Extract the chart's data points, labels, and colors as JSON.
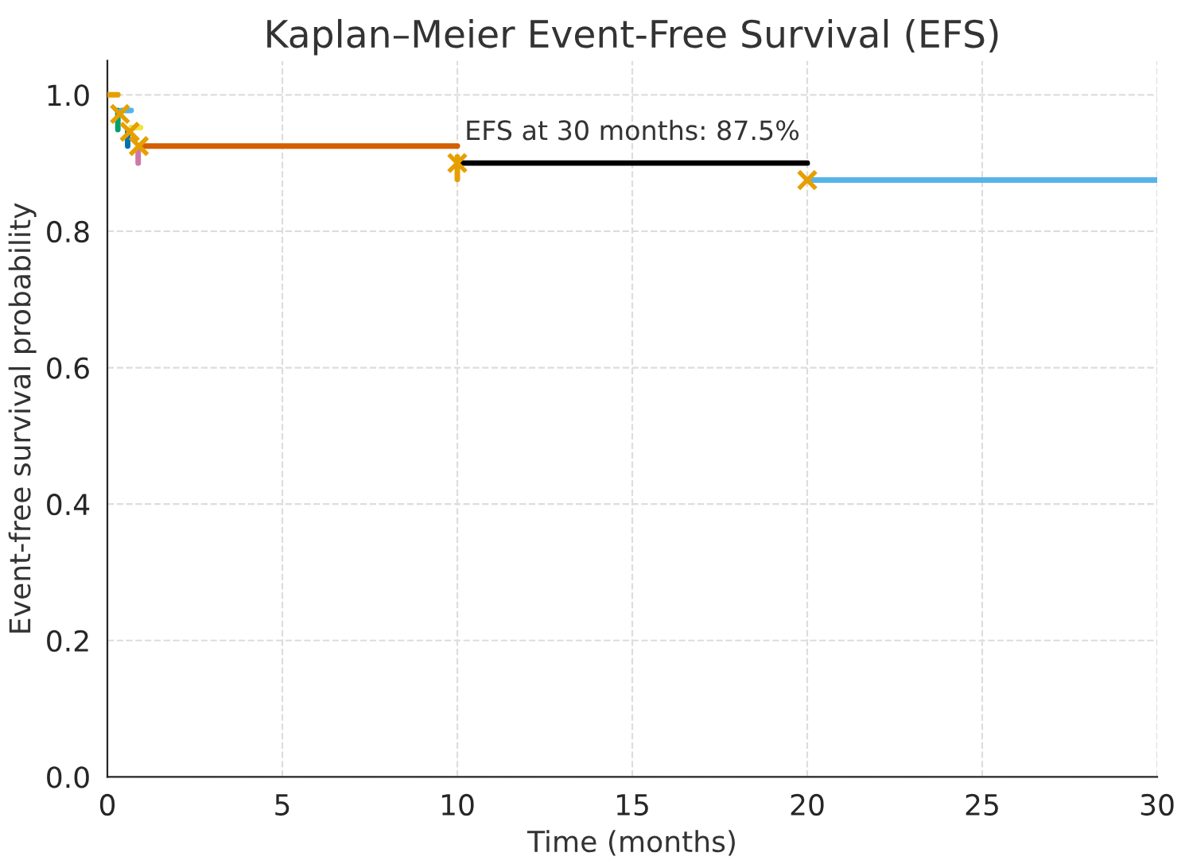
{
  "chart_data": {
    "type": "line",
    "title": "Kaplan–Meier Event-Free Survival (EFS)",
    "xlabel": "Time (months)",
    "ylabel": "Event-free survival probability",
    "xlim": [
      0,
      30
    ],
    "xticks": [
      0,
      5,
      10,
      15,
      20,
      25,
      30
    ],
    "ylim": [
      0,
      1.05
    ],
    "yticks": [
      {
        "value": 0,
        "label": "0.0"
      },
      {
        "value": 0.2,
        "label": "0.2"
      },
      {
        "value": 0.4,
        "label": "0.4"
      },
      {
        "value": 0.6,
        "label": "0.6"
      },
      {
        "value": 0.8,
        "label": "0.8"
      },
      {
        "value": 1.0,
        "label": "1.0"
      }
    ],
    "grid": true,
    "line_style": "solid",
    "series": [
      {
        "color": "#e69f00",
        "x": [
          0,
          0.3
        ],
        "values": [
          1.0,
          1.0
        ]
      },
      {
        "color": "#009e73",
        "x": [
          0.3,
          0.3
        ],
        "values": [
          0.977,
          0.949
        ]
      },
      {
        "color": "#56b4e9",
        "x": [
          0.4,
          0.68
        ],
        "values": [
          0.977,
          0.977
        ]
      },
      {
        "color": "#0072b2",
        "x": [
          0.58,
          0.58
        ],
        "values": [
          0.946,
          0.925
        ]
      },
      {
        "color": "#f0e442",
        "x": [
          0.68,
          0.95
        ],
        "values": [
          0.952,
          0.952
        ]
      },
      {
        "color": "#cc79a7",
        "x": [
          0.88,
          0.88
        ],
        "values": [
          0.918,
          0.9
        ]
      },
      {
        "color": "#d55e00",
        "x": [
          1,
          10
        ],
        "values": [
          0.925,
          0.925
        ]
      },
      {
        "color": "#e69f00",
        "x": [
          10,
          10
        ],
        "values": [
          0.909,
          0.876
        ]
      },
      {
        "color": "#000000",
        "x": [
          10,
          20
        ],
        "values": [
          0.9,
          0.9
        ]
      },
      {
        "color": "#56b4e9",
        "x": [
          20,
          30
        ],
        "values": [
          0.875,
          0.875
        ]
      },
      {
        "type": "scatter",
        "color": "#e69f00",
        "marker": "cross",
        "x": [
          0.36,
          0.64,
          0.9,
          10,
          20
        ],
        "values": [
          0.972,
          0.946,
          0.925,
          0.9,
          0.875
        ]
      }
    ],
    "annotations": [
      {
        "text": "EFS at 30 months: 87.5%",
        "x": 15,
        "y": 0.9
      }
    ]
  }
}
